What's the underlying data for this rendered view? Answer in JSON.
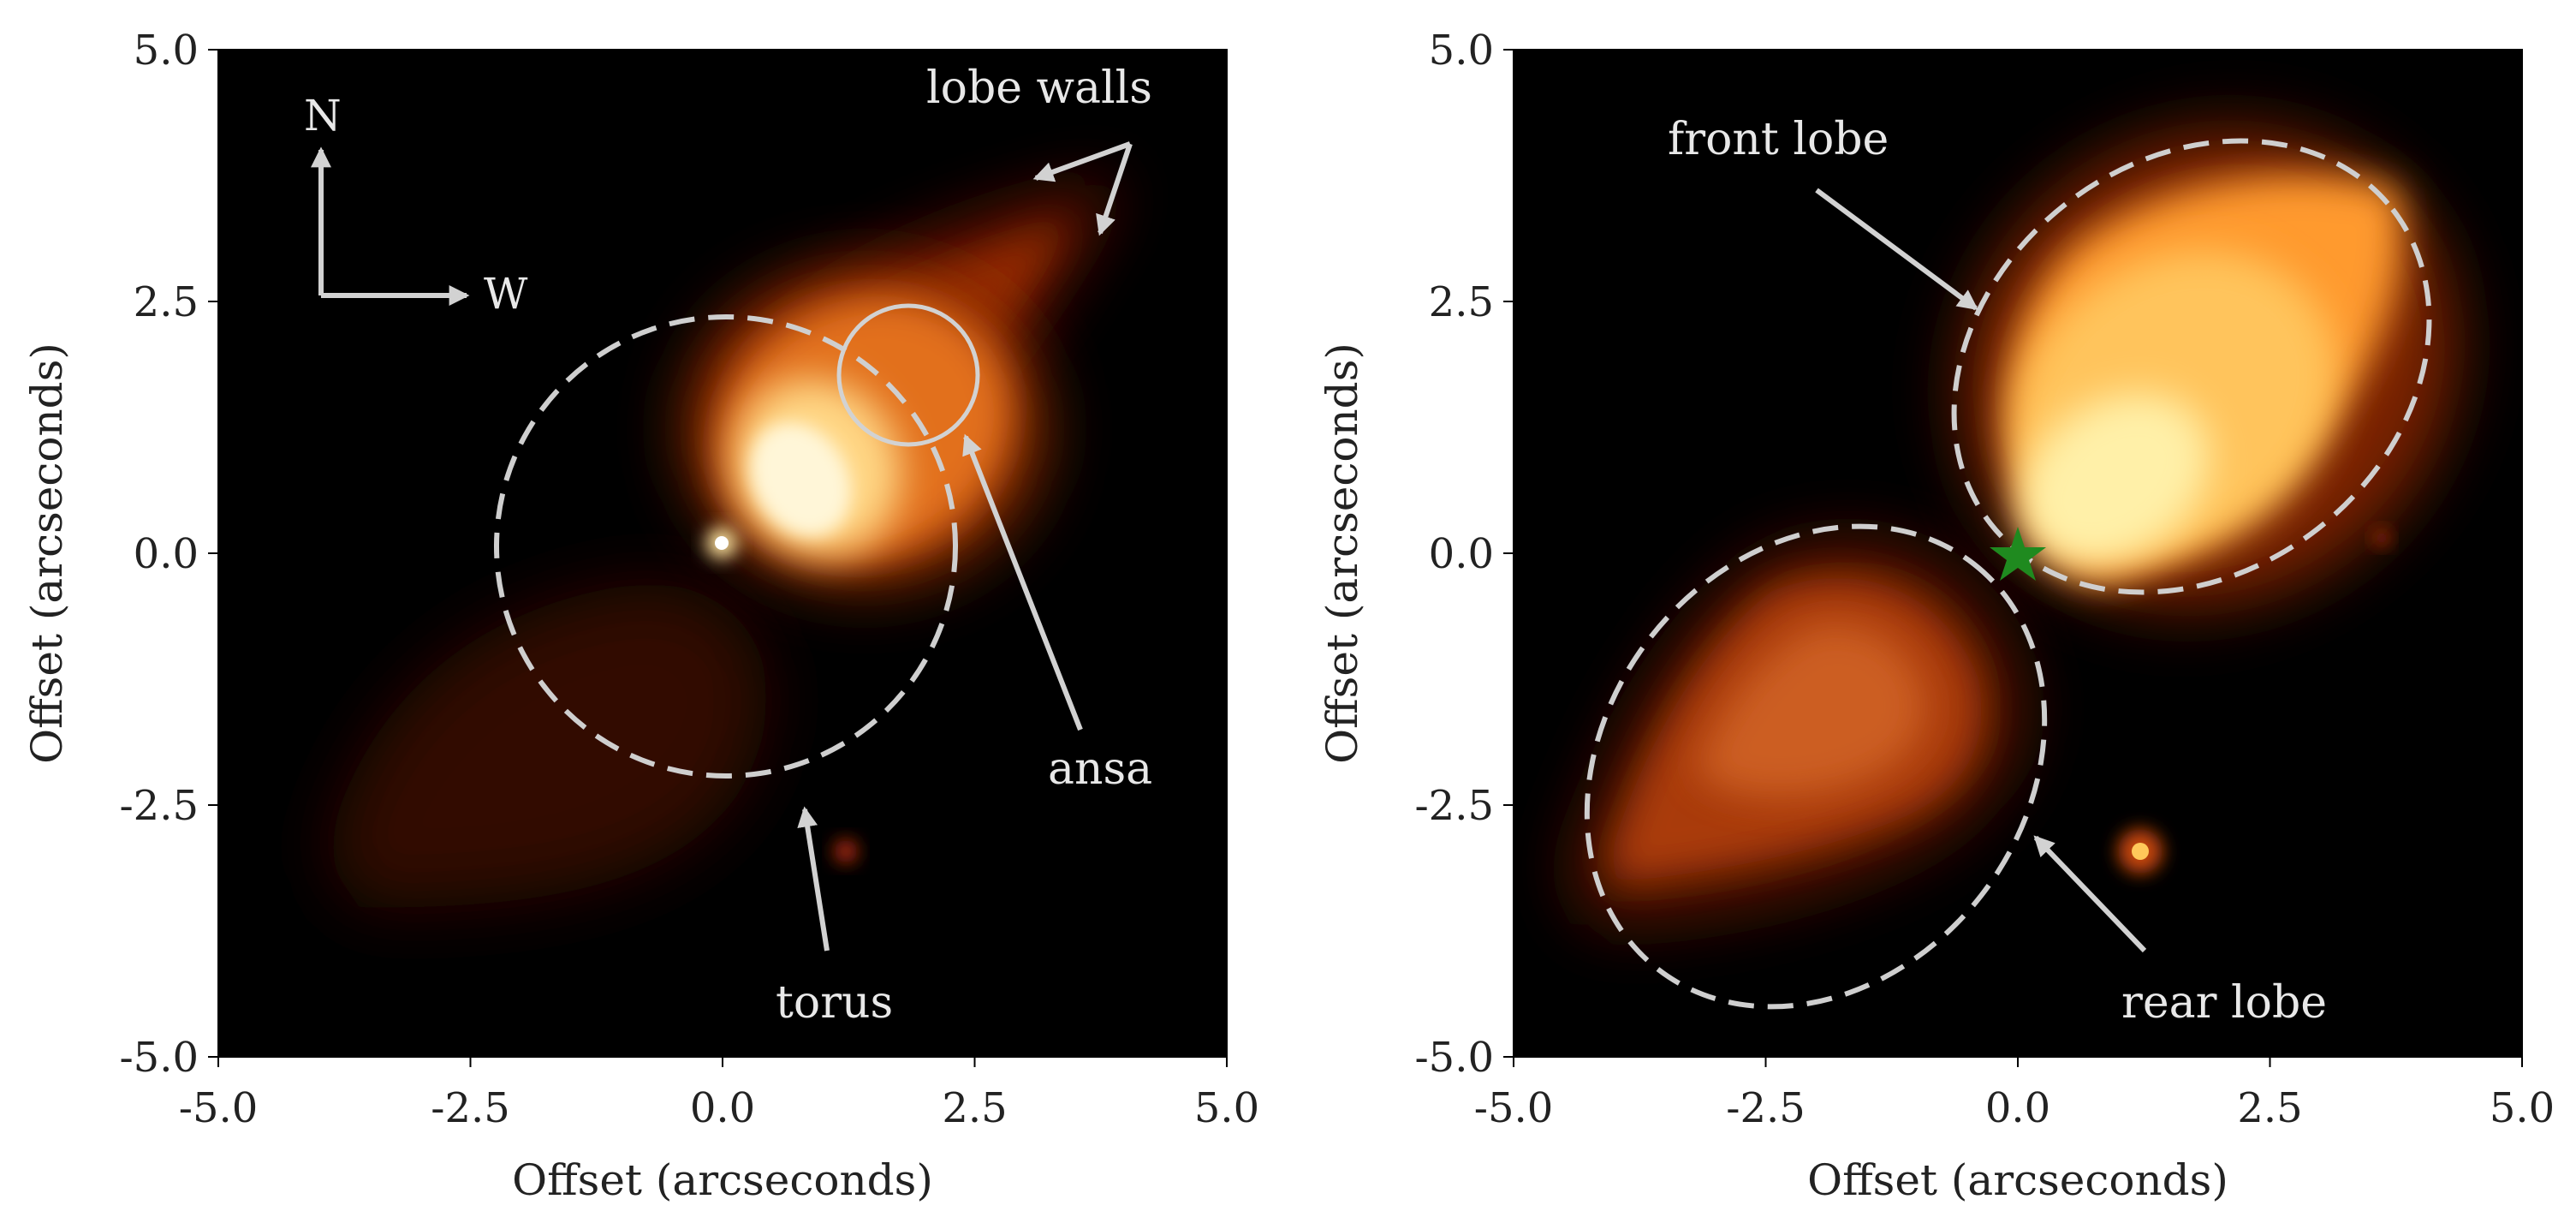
{
  "figure": {
    "panels": [
      {
        "id": "left",
        "xlabel": "Offset (arcseconds)",
        "ylabel": "Offset (arcseconds)",
        "xticks": [
          "-5.0",
          "-2.5",
          "0.0",
          "2.5",
          "5.0"
        ],
        "yticks": [
          "5.0",
          "2.5",
          "0.0",
          "-2.5",
          "-5.0"
        ],
        "annotations": {
          "compass_north": "N",
          "compass_west": "W",
          "lobe_walls": "lobe walls",
          "ansa": "ansa",
          "torus": "torus"
        }
      },
      {
        "id": "right",
        "xlabel": "Offset (arcseconds)",
        "ylabel": "Offset (arcseconds)",
        "xticks": [
          "-5.0",
          "-2.5",
          "0.0",
          "2.5",
          "5.0"
        ],
        "yticks": [
          "5.0",
          "2.5",
          "0.0",
          "-2.5",
          "-5.0"
        ],
        "annotations": {
          "front_lobe": "front lobe",
          "rear_lobe": "rear lobe"
        }
      }
    ],
    "colors": {
      "background": "#000000",
      "annotation": "#d9d9d9",
      "star_marker": "#1f8a1f",
      "colormap": "afmhot"
    }
  },
  "chart_data": [
    {
      "type": "heatmap",
      "xlim": [
        -5.0,
        5.0
      ],
      "ylim": [
        -5.0,
        5.0
      ],
      "xlabel": "Offset (arcseconds)",
      "ylabel": "Offset (arcseconds)",
      "annotations": [
        "N",
        "W",
        "lobe walls",
        "ansa",
        "torus"
      ]
    },
    {
      "type": "heatmap",
      "xlim": [
        -5.0,
        5.0
      ],
      "ylim": [
        -5.0,
        5.0
      ],
      "xlabel": "Offset (arcseconds)",
      "ylabel": "Offset (arcseconds)",
      "annotations": [
        "front lobe",
        "rear lobe"
      ],
      "marker": {
        "shape": "star",
        "x": 0.0,
        "y": 0.0,
        "color": "#1f8a1f"
      }
    }
  ]
}
